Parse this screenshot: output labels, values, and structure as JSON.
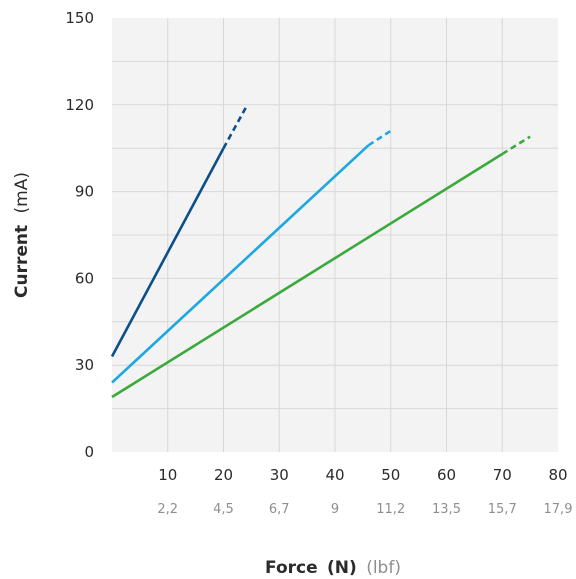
{
  "chart_data": {
    "type": "line",
    "title": "",
    "xlabel": {
      "main": "Force",
      "unit_primary": "(N)",
      "unit_secondary": "(lbf)"
    },
    "ylabel": {
      "main": "Current",
      "unit": "(mA)"
    },
    "xlim": [
      0,
      80
    ],
    "ylim": [
      0,
      150
    ],
    "x_ticks": [
      10,
      20,
      30,
      40,
      50,
      60,
      70,
      80
    ],
    "x_tick_labels": [
      "10",
      "20",
      "30",
      "40",
      "50",
      "60",
      "70",
      "80"
    ],
    "x_secondary_tick_labels": [
      "2,2",
      "4,5",
      "6,7",
      "9",
      "11,2",
      "13,5",
      "15,7",
      "17,9"
    ],
    "y_ticks": [
      0,
      30,
      60,
      90,
      120,
      150
    ],
    "y_tick_labels": [
      "0",
      "30",
      "60",
      "90",
      "120",
      "150"
    ],
    "grid": true,
    "background": "#f3f3f4",
    "grid_color": "#d8d8d8",
    "series": [
      {
        "color": "#0b4f8a",
        "solid": [
          [
            0,
            33
          ],
          [
            20,
            105
          ]
        ],
        "dashed": [
          [
            20,
            105
          ],
          [
            24,
            119
          ]
        ]
      },
      {
        "color": "#1ea7e0",
        "solid": [
          [
            0,
            24
          ],
          [
            46,
            106
          ]
        ],
        "dashed": [
          [
            46,
            106
          ],
          [
            50,
            111
          ]
        ]
      },
      {
        "color": "#3aaa3a",
        "solid": [
          [
            0,
            19
          ],
          [
            70,
            103
          ]
        ],
        "dashed": [
          [
            70,
            103
          ],
          [
            75,
            109
          ]
        ]
      }
    ]
  }
}
